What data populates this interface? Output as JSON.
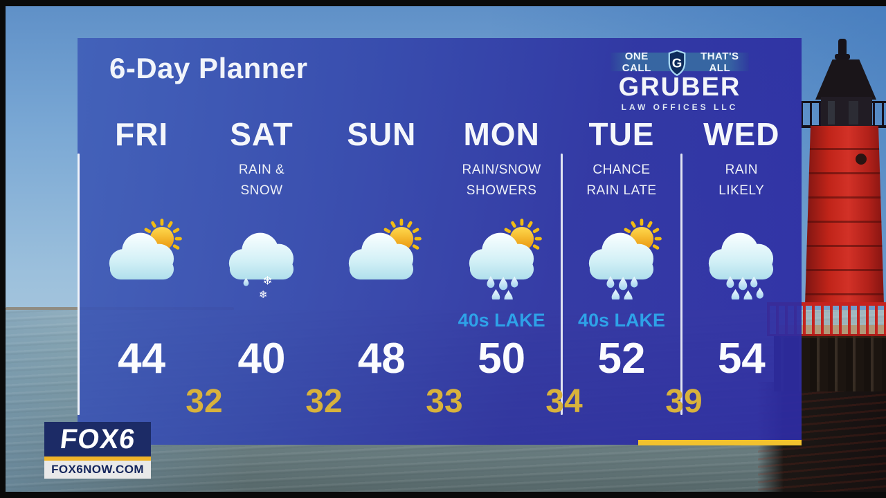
{
  "header": {
    "title": "6-Day Planner"
  },
  "sponsor": {
    "tagline_left": "ONE CALL",
    "shield_letter": "G",
    "tagline_right": "THAT'S ALL",
    "name": "GRUBER",
    "subtitle": "LAW OFFICES LLC"
  },
  "forecast": {
    "days": [
      {
        "label": "FRI",
        "cond1": "",
        "cond2": "",
        "icon": "sun-cloud",
        "lake": "",
        "high": "44"
      },
      {
        "label": "SAT",
        "cond1": "RAIN &",
        "cond2": "SNOW",
        "icon": "snow-cloud",
        "lake": "",
        "high": "40"
      },
      {
        "label": "SUN",
        "cond1": "",
        "cond2": "",
        "icon": "sun-cloud",
        "lake": "",
        "high": "48"
      },
      {
        "label": "MON",
        "cond1": "RAIN/SNOW",
        "cond2": "SHOWERS",
        "icon": "sun-rain-cloud",
        "lake": "40s LAKE",
        "high": "50"
      },
      {
        "label": "TUE",
        "cond1": "CHANCE",
        "cond2": "RAIN LATE",
        "icon": "sun-rain-cloud",
        "lake": "40s LAKE",
        "high": "52"
      },
      {
        "label": "WED",
        "cond1": "RAIN",
        "cond2": "LIKELY",
        "icon": "rain-cloud",
        "lake": "",
        "high": "54"
      }
    ],
    "lows": [
      "32",
      "32",
      "33",
      "34",
      "39"
    ]
  },
  "station": {
    "logo_text": "FOX6",
    "url": "FOX6NOW.COM"
  },
  "colors": {
    "low_temp": "#d8b23c",
    "lake_note": "#2ea2e8",
    "accent_bar": "#f2c22e",
    "panel_left": "#405eb8",
    "panel_right": "#2d2ba3"
  },
  "chart_data": {
    "type": "table",
    "title": "6-Day Planner",
    "columns": [
      "FRI",
      "SAT",
      "SUN",
      "MON",
      "TUE",
      "WED"
    ],
    "conditions": [
      "",
      "RAIN & SNOW",
      "",
      "RAIN/SNOW SHOWERS",
      "CHANCE RAIN LATE",
      "RAIN LIKELY"
    ],
    "highs": [
      44,
      40,
      48,
      50,
      52,
      54
    ],
    "lows": [
      32,
      32,
      33,
      34,
      39
    ],
    "lake_notes": [
      "",
      "",
      "",
      "40s LAKE",
      "40s LAKE",
      ""
    ]
  }
}
